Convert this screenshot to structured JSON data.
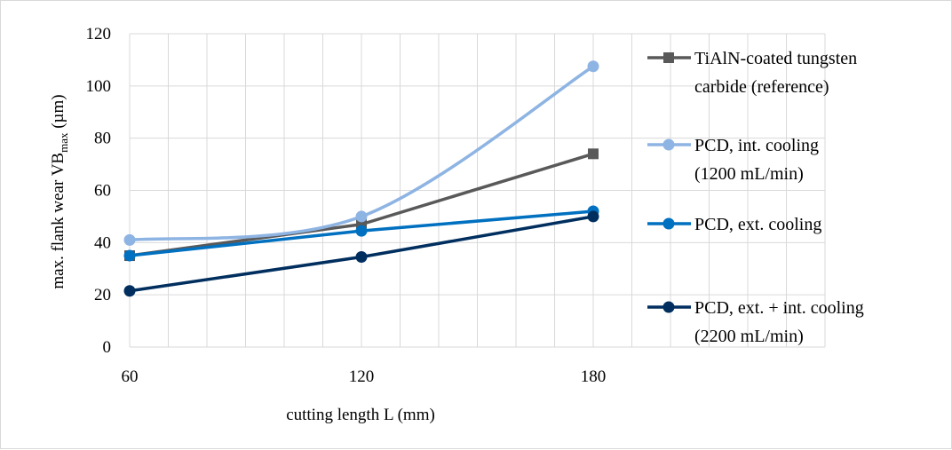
{
  "chart_data": {
    "type": "line",
    "title": "",
    "xlabel": "cutting length L (mm)",
    "ylabel": {
      "main": "max. flank wear VB",
      "subscript": "max",
      "unit": " (µm)"
    },
    "x": [
      60,
      120,
      180
    ],
    "x_ticks": [
      "60",
      "120",
      "180"
    ],
    "y_ticks": [
      "0",
      "20",
      "40",
      "60",
      "80",
      "100",
      "120"
    ],
    "ylim": [
      0,
      120
    ],
    "grid": true,
    "legend_position": "right",
    "series": [
      {
        "name": "TiAlN-coated tungsten carbide (reference)",
        "legend_lines": [
          "TiAlN-coated tungsten",
          "carbide (reference)"
        ],
        "values": [
          35,
          47,
          74
        ],
        "color": "#595959",
        "marker": "square",
        "smooth": false
      },
      {
        "name": "PCD, int. cooling (1200 mL/min)",
        "legend_lines": [
          "PCD, int. cooling",
          "(1200 mL/min)"
        ],
        "values": [
          41,
          50,
          107.5
        ],
        "color": "#8eb4e3",
        "marker": "circle",
        "smooth": true
      },
      {
        "name": "PCD, ext. cooling",
        "legend_lines": [
          "PCD, ext. cooling"
        ],
        "values": [
          35,
          44.5,
          52
        ],
        "color": "#0070c0",
        "marker": "circle",
        "smooth": false
      },
      {
        "name": "PCD, ext. + int. cooling (2200 mL/min)",
        "legend_lines": [
          "PCD, ext. + int. cooling",
          "(2200 mL/min)"
        ],
        "values": [
          21.5,
          34.5,
          50
        ],
        "color": "#002f5f",
        "marker": "circle",
        "smooth": false
      }
    ]
  }
}
